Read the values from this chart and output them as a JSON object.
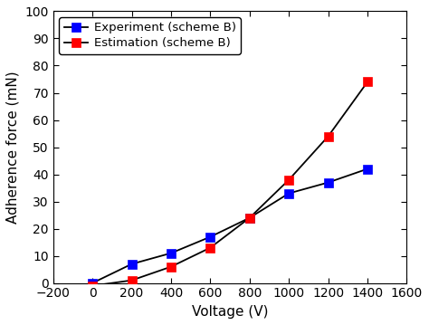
{
  "experiment_x": [
    0,
    200,
    400,
    600,
    800,
    1000,
    1200,
    1400
  ],
  "experiment_y": [
    0,
    7,
    11,
    17,
    24,
    33,
    37,
    42
  ],
  "estimation_x": [
    0,
    200,
    400,
    600,
    800,
    1000,
    1200,
    1400
  ],
  "estimation_y": [
    -1,
    1,
    6,
    13,
    24,
    38,
    54,
    74
  ],
  "experiment_color": "#0000FF",
  "estimation_color": "#FF0000",
  "line_color": "#000000",
  "marker": "s",
  "marker_size": 7,
  "line_width": 1.3,
  "xlabel": "Voltage (V)",
  "ylabel": "Adherence force (mN)",
  "xlim": [
    -200,
    1600
  ],
  "ylim": [
    0,
    100
  ],
  "xticks": [
    -200,
    0,
    200,
    400,
    600,
    800,
    1000,
    1200,
    1400,
    1600
  ],
  "yticks": [
    0,
    10,
    20,
    30,
    40,
    50,
    60,
    70,
    80,
    90,
    100
  ],
  "legend_experiment": "Experiment (scheme B)",
  "legend_estimation": "Estimation (scheme B)",
  "legend_loc": "upper left",
  "xlabel_fontsize": 11,
  "ylabel_fontsize": 11,
  "tick_fontsize": 10,
  "legend_fontsize": 9.5
}
